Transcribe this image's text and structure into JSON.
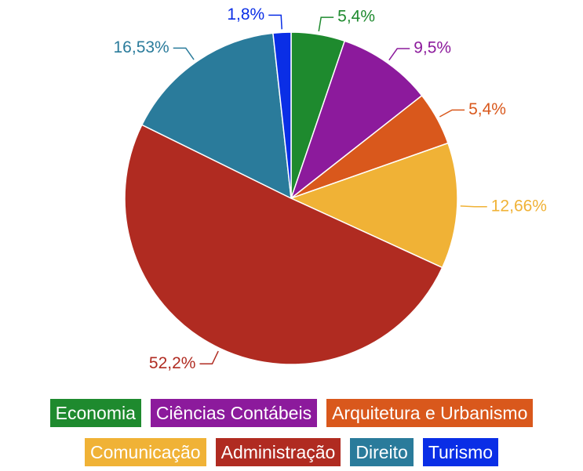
{
  "chart_data": {
    "type": "pie",
    "categories": [
      "Economia",
      "Ciências Contábeis",
      "Arquitetura e Urbanismo",
      "Comunicação",
      "Administração",
      "Direito",
      "Turismo"
    ],
    "values": [
      5.4,
      9.5,
      5.4,
      12.66,
      52.2,
      16.53,
      1.8
    ],
    "value_labels": [
      "5,4%",
      "9,5%",
      "5,4%",
      "12,66%",
      "52,2%",
      "16,53%",
      "1,8%"
    ],
    "colors": [
      "#1e8a2e",
      "#8c1a9c",
      "#d9581c",
      "#f0b236",
      "#b02b21",
      "#2a7b9b",
      "#0a2ee6"
    ]
  }
}
